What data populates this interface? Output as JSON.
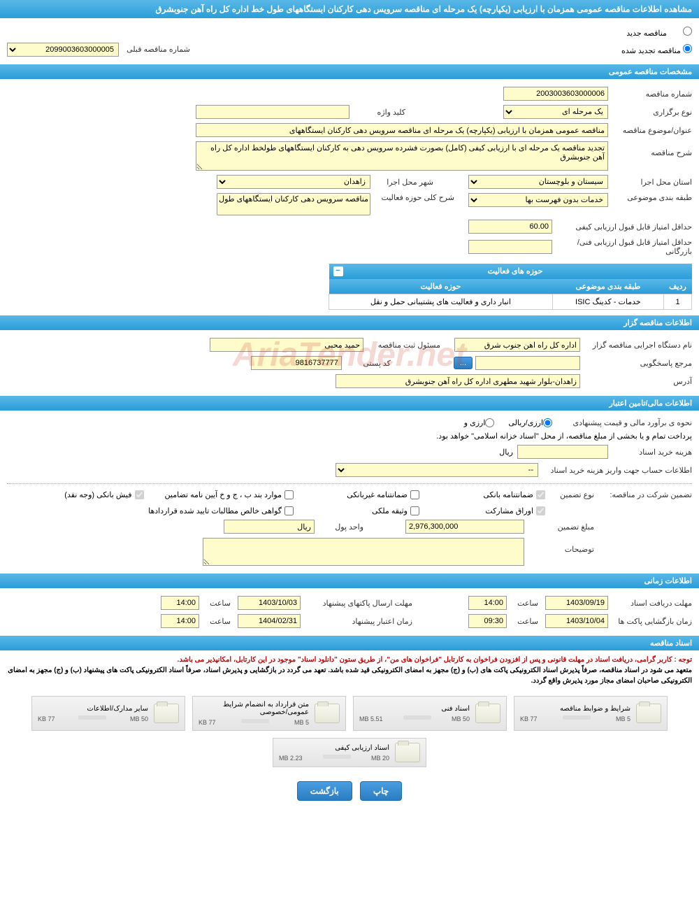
{
  "page_title": "مشاهده اطلاعات مناقصه عمومی همزمان با ارزیابی (یکپارچه) یک مرحله ای مناقصه سرویس دهی کارکنان ایستگاههای طول خط اداره کل راه آهن جنوبشرق",
  "tender_type": {
    "new_label": "مناقصه جدید",
    "renewed_label": "مناقصه تجدید شده",
    "prev_number_label": "شماره مناقصه قبلی",
    "prev_number_value": "2099003603000005"
  },
  "general_specs": {
    "header": "مشخصات مناقصه عمومی",
    "tender_number_label": "شماره مناقصه",
    "tender_number_value": "2003003603000006",
    "holding_type_label": "نوع برگزاری",
    "holding_type_value": "یک مرحله ای",
    "keyword_label": "کلید واژه",
    "keyword_value": "",
    "subject_label": "عنوان/موضوع مناقصه",
    "subject_value": "مناقصه عمومی همزمان با ارزیابی (یکپارچه) یک مرحله ای مناقصه سرویس دهی کارکنان ایستگاههای",
    "description_label": "شرح مناقصه",
    "description_value": "تجدید مناقصه یک مرحله ای با ارزیابی کیفی (کامل) بصورت فشرده سرویس دهی به کارکنان ایستگاههای طولخط اداره کل راه آهن جنوبشرق",
    "province_label": "استان محل اجرا",
    "province_value": "سیستان و بلوچستان",
    "city_label": "شهر محل اجرا",
    "city_value": "زاهدان",
    "category_label": "طبقه بندی موضوعی",
    "category_value": "خدمات بدون فهرست بها",
    "activity_field_label": "شرح کلی حوزه فعالیت",
    "activity_field_value": "مناقصه سرویس دهی کارکنان ایستگاههای طول",
    "min_quality_score_label": "حداقل امتیاز قابل قبول ارزیابی کیفی",
    "min_quality_score_value": "60.00",
    "min_tech_score_label": "حداقل امتیاز قابل قبول ارزیابی فنی/بازرگانی",
    "min_tech_score_value": ""
  },
  "activity_table": {
    "header": "حوزه های فعالیت",
    "title_header": "حوزه های فعالیت",
    "col_row": "ردیف",
    "col_category": "طبقه بندی موضوعی",
    "col_field": "حوزه فعالیت",
    "row1_num": "1",
    "row1_cat": "خدمات - کدینگ ISIC",
    "row1_field": "انبار داری و فعالیت های پشتیبانی حمل و نقل"
  },
  "tenderer_info": {
    "header": "اطلاعات مناقصه گزار",
    "org_label": "نام دستگاه اجرایی مناقصه گزار",
    "org_value": "اداره کل راه اهن جنوب شرق",
    "registrar_label": "مسئول ثبت مناقصه",
    "registrar_value": "حمید محبی",
    "reference_label": "مرجع پاسخگویی",
    "reference_btn": "...",
    "postal_label": "کد پستی",
    "postal_value": "9816737777",
    "address_label": "آدرس",
    "address_value": "زاهدان-بلوار شهید مطهری اداره کل راه آهن جنوبشرق"
  },
  "financial_info": {
    "header": "اطلاعات مالی/تامین اعتبار",
    "estimate_label": "نحوه ی برآورد مالی و قیمت پیشنهادی",
    "opt_rial": "ارزی/ریالی",
    "opt_currency": "ارزی و",
    "payment_note": "پرداخت تمام و یا بخشی از مبلغ مناقصه، از محل \"اسناد خزانه اسلامی\" خواهد بود.",
    "doc_cost_label": "هزینه خرید اسناد",
    "doc_cost_value": "",
    "doc_cost_unit": "ریال",
    "account_label": "اطلاعات حساب جهت واریز هزینه خرید اسناد",
    "account_value": "--",
    "guarantee_label": "تضمین شرکت در مناقصه:",
    "guarantee_type_label": "نوع تضمین",
    "g1": "ضمانتنامه بانکی",
    "g2": "ضمانتنامه غیربانکی",
    "g3": "موارد بند ب ، ج و خ آیین نامه تضامین",
    "g4": "فیش بانکی (وجه نقد)",
    "g5": "اوراق مشارکت",
    "g6": "وثیقه ملکی",
    "g7": "گواهی خالص مطالبات تایید شده قراردادها",
    "guarantee_amount_label": "مبلغ تضمین",
    "guarantee_amount_value": "2,976,300,000",
    "currency_unit_label": "واحد پول",
    "currency_unit_value": "ریال",
    "notes_label": "توضیحات",
    "notes_value": ""
  },
  "time_info": {
    "header": "اطلاعات زمانی",
    "receive_deadline_label": "مهلت دریافت اسناد",
    "receive_deadline_date": "1403/09/19",
    "receive_deadline_time_label": "ساعت",
    "receive_deadline_time": "14:00",
    "send_deadline_label": "مهلت ارسال پاکتهای پیشنهاد",
    "send_deadline_date": "1403/10/03",
    "send_deadline_time_label": "ساعت",
    "send_deadline_time": "14:00",
    "open_label": "زمان بازگشایی پاکت ها",
    "open_date": "1403/10/04",
    "open_time_label": "ساعت",
    "open_time": "09:30",
    "validity_label": "زمان اعتبار پیشنهاد",
    "validity_date": "1404/02/31",
    "validity_time_label": "ساعت",
    "validity_time": "14:00"
  },
  "documents": {
    "header": "اسناد مناقصه",
    "note1": "توجه : کاربر گرامی، دریافت اسناد در مهلت قانونی و پس از افزودن فراخوان به کارتابل \"فراخوان های من\"، از طریق ستون \"دانلود اسناد\" موجود در این کارتابل، امکانپذیر می باشد.",
    "note2": "متعهد می شود در اسناد مناقصه، صرفاً پذیرش اسناد الکترونیکی پاکت های (ب) و (ج) مجهز به امضای الکترونیکی قید شده باشد. تعهد می گردد در بازگشایی و پذیرش اسناد، صرفاً اسناد الکترونیکی پاکت های پیشنهاد (ب) و (ج) مجهز به امضای الکترونیکی صاحبان امضای مجاز مورد پذیرش واقع گردد.",
    "files": [
      {
        "title": "شرایط و ضوابط مناقصه",
        "max": "5 MB",
        "used": "77 KB",
        "pct": 8
      },
      {
        "title": "اسناد فنی",
        "max": "50 MB",
        "used": "5.51 MB",
        "pct": 12
      },
      {
        "title": "متن قرارداد به انضمام شرایط عمومی/خصوصی",
        "max": "5 MB",
        "used": "77 KB",
        "pct": 8
      },
      {
        "title": "سایر مدارک/اطلاعات",
        "max": "50 MB",
        "used": "77 KB",
        "pct": 2
      },
      {
        "title": "اسناد ارزیابی کیفی",
        "max": "20 MB",
        "used": "2.23 MB",
        "pct": 12
      }
    ]
  },
  "buttons": {
    "print": "چاپ",
    "back": "بازگشت"
  },
  "watermark": "AriaTender.net"
}
